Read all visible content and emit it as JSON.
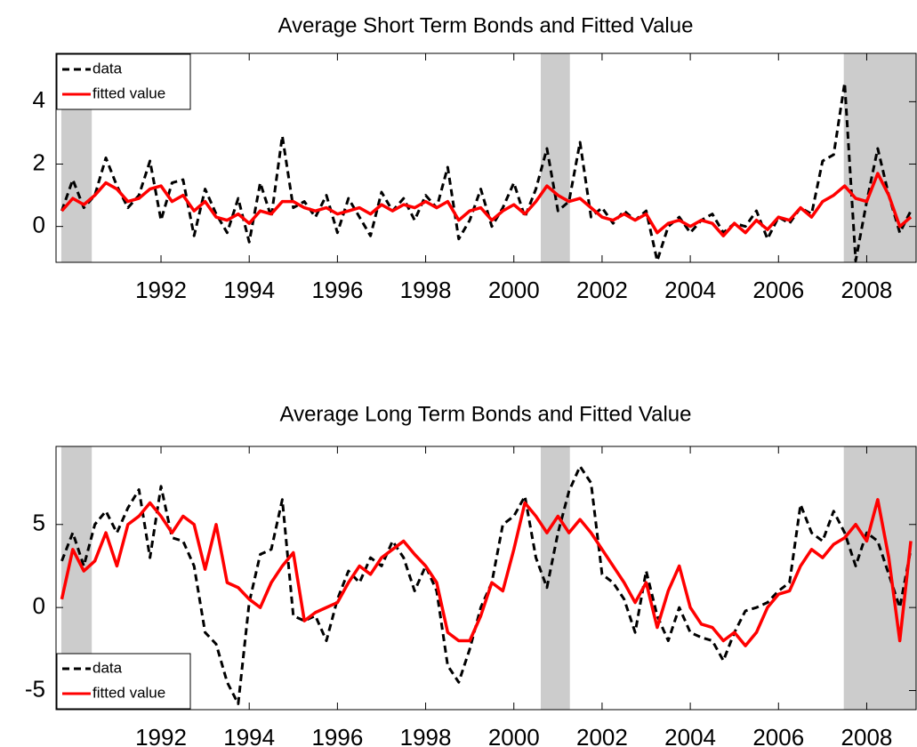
{
  "chart_data": [
    {
      "type": "line",
      "title": "Average Short Term Bonds and Fitted Value",
      "x": [
        1989.75,
        1990,
        1990.25,
        1990.5,
        1990.75,
        1991,
        1991.25,
        1991.5,
        1991.75,
        1992,
        1992.25,
        1992.5,
        1992.75,
        1993,
        1993.25,
        1993.5,
        1993.75,
        1994,
        1994.25,
        1994.5,
        1994.75,
        1995,
        1995.25,
        1995.5,
        1995.75,
        1996,
        1996.25,
        1996.5,
        1996.75,
        1997,
        1997.25,
        1997.5,
        1997.75,
        1998,
        1998.25,
        1998.5,
        1998.75,
        1999,
        1999.25,
        1999.5,
        1999.75,
        2000,
        2000.25,
        2000.5,
        2000.75,
        2001,
        2001.25,
        2001.5,
        2001.75,
        2002,
        2002.25,
        2002.5,
        2002.75,
        2003,
        2003.25,
        2003.5,
        2003.75,
        2004,
        2004.25,
        2004.5,
        2004.75,
        2005,
        2005.25,
        2005.5,
        2005.75,
        2006,
        2006.25,
        2006.5,
        2006.75,
        2007,
        2007.25,
        2007.5,
        2007.75,
        2008,
        2008.25,
        2008.5,
        2008.75,
        2009
      ],
      "series": [
        {
          "name": "data",
          "color": "#000000",
          "linestyle": "dashed",
          "values": [
            0.5,
            1.5,
            0.6,
            1.0,
            2.2,
            1.3,
            0.6,
            1.0,
            2.1,
            0.2,
            1.4,
            1.5,
            -0.3,
            1.2,
            0.4,
            -0.2,
            0.9,
            -0.5,
            1.4,
            0.3,
            2.9,
            0.6,
            0.8,
            0.3,
            1.0,
            -0.2,
            0.9,
            0.3,
            -0.3,
            1.1,
            0.5,
            0.9,
            0.2,
            1.0,
            0.6,
            1.9,
            -0.4,
            0.2,
            1.2,
            0.0,
            0.6,
            1.4,
            0.3,
            1.2,
            2.5,
            0.5,
            0.8,
            2.7,
            0.3,
            0.6,
            0.1,
            0.5,
            0.2,
            0.5,
            -1.1,
            0.0,
            0.3,
            -0.2,
            0.2,
            0.4,
            -0.2,
            0.1,
            0.0,
            0.5,
            -0.4,
            0.3,
            0.1,
            0.6,
            0.4,
            2.1,
            2.3,
            4.6,
            -1.1,
            0.8,
            2.5,
            1.0,
            -0.2,
            0.5
          ]
        },
        {
          "name": "fitted value",
          "color": "#ff0000",
          "linestyle": "solid",
          "values": [
            0.5,
            0.9,
            0.7,
            1.0,
            1.4,
            1.2,
            0.8,
            0.9,
            1.2,
            1.3,
            0.8,
            1.0,
            0.5,
            0.8,
            0.3,
            0.2,
            0.4,
            0.1,
            0.5,
            0.4,
            0.8,
            0.8,
            0.6,
            0.5,
            0.6,
            0.4,
            0.5,
            0.6,
            0.4,
            0.7,
            0.5,
            0.7,
            0.6,
            0.8,
            0.6,
            0.8,
            0.2,
            0.5,
            0.6,
            0.2,
            0.5,
            0.7,
            0.4,
            0.8,
            1.3,
            1.0,
            0.8,
            0.9,
            0.6,
            0.3,
            0.2,
            0.4,
            0.2,
            0.4,
            -0.2,
            0.1,
            0.2,
            0.0,
            0.2,
            0.1,
            -0.3,
            0.1,
            -0.2,
            0.2,
            -0.1,
            0.3,
            0.2,
            0.6,
            0.3,
            0.8,
            1.0,
            1.3,
            0.9,
            0.8,
            1.7,
            1.0,
            0.0,
            0.3
          ]
        }
      ],
      "shaded_regions": [
        [
          1989.74,
          1990.43
        ],
        [
          2000.61,
          2001.27
        ],
        [
          2007.48,
          2009.12
        ]
      ],
      "xlim": [
        1989.62,
        2009.12
      ],
      "xticks": [
        1992,
        1994,
        1996,
        1998,
        2000,
        2002,
        2004,
        2006,
        2008
      ],
      "ylim": [
        -1.15,
        5.55
      ],
      "yticks": [
        0,
        2,
        4
      ],
      "grid": false,
      "legend": "upper-left"
    },
    {
      "type": "line",
      "title": "Average Long Term Bonds and Fitted Value",
      "x": [
        1989.75,
        1990,
        1990.25,
        1990.5,
        1990.75,
        1991,
        1991.25,
        1991.5,
        1991.75,
        1992,
        1992.25,
        1992.5,
        1992.75,
        1993,
        1993.25,
        1993.5,
        1993.75,
        1994,
        1994.25,
        1994.5,
        1994.75,
        1995,
        1995.25,
        1995.5,
        1995.75,
        1996,
        1996.25,
        1996.5,
        1996.75,
        1997,
        1997.25,
        1997.5,
        1997.75,
        1998,
        1998.25,
        1998.5,
        1998.75,
        1999,
        1999.25,
        1999.5,
        1999.75,
        2000,
        2000.25,
        2000.5,
        2000.75,
        2001,
        2001.25,
        2001.5,
        2001.75,
        2002,
        2002.25,
        2002.5,
        2002.75,
        2003,
        2003.25,
        2003.5,
        2003.75,
        2004,
        2004.25,
        2004.5,
        2004.75,
        2005,
        2005.25,
        2005.5,
        2005.75,
        2006,
        2006.25,
        2006.5,
        2006.75,
        2007,
        2007.25,
        2007.5,
        2007.75,
        2008,
        2008.25,
        2008.5,
        2008.75,
        2009
      ],
      "series": [
        {
          "name": "data",
          "color": "#000000",
          "linestyle": "dashed",
          "values": [
            2.8,
            4.5,
            2.5,
            5.0,
            5.8,
            4.5,
            6.0,
            7.1,
            3.0,
            7.3,
            4.2,
            4.0,
            2.5,
            -1.5,
            -2.2,
            -4.5,
            -5.8,
            0.3,
            3.2,
            3.5,
            6.5,
            -0.5,
            -0.8,
            -0.5,
            -2.0,
            0.5,
            2.2,
            1.5,
            3.0,
            2.5,
            4.0,
            3.0,
            1.0,
            2.5,
            1.0,
            -3.5,
            -4.5,
            -2.5,
            0.0,
            1.5,
            5.0,
            5.5,
            6.7,
            3.0,
            1.2,
            4.5,
            7.0,
            8.5,
            7.5,
            2.0,
            1.5,
            0.5,
            -1.5,
            2.2,
            -0.5,
            -2.0,
            0.0,
            -1.5,
            -1.8,
            -2.0,
            -3.2,
            -1.5,
            -0.2,
            0.0,
            0.3,
            1.0,
            1.5,
            6.2,
            4.5,
            4.0,
            5.8,
            4.5,
            2.5,
            4.5,
            4.0,
            2.0,
            0.0,
            3.5
          ]
        },
        {
          "name": "fitted value",
          "color": "#ff0000",
          "linestyle": "solid",
          "values": [
            0.5,
            3.5,
            2.2,
            2.8,
            4.5,
            2.5,
            5.0,
            5.5,
            6.3,
            5.5,
            4.5,
            5.5,
            5.0,
            2.3,
            5.0,
            1.5,
            1.2,
            0.5,
            0.0,
            1.5,
            2.5,
            3.3,
            -0.8,
            -0.3,
            0.0,
            0.3,
            1.5,
            2.5,
            2.0,
            3.0,
            3.5,
            4.0,
            3.2,
            2.5,
            1.5,
            -1.5,
            -2.0,
            -2.0,
            -0.5,
            1.5,
            1.0,
            3.5,
            6.3,
            5.5,
            4.5,
            5.5,
            4.5,
            5.3,
            4.5,
            3.5,
            2.5,
            1.5,
            0.3,
            1.5,
            -1.2,
            1.0,
            2.5,
            0.0,
            -1.0,
            -1.2,
            -2.0,
            -1.5,
            -2.3,
            -1.5,
            0.0,
            0.8,
            1.0,
            2.5,
            3.5,
            3.0,
            3.8,
            4.2,
            5.0,
            4.0,
            6.5,
            3.0,
            -2.0,
            4.0
          ]
        }
      ],
      "shaded_regions": [
        [
          1989.74,
          1990.43
        ],
        [
          2000.61,
          2001.27
        ],
        [
          2007.48,
          2009.12
        ]
      ],
      "xlim": [
        1989.62,
        2009.12
      ],
      "xticks": [
        1992,
        1994,
        1996,
        1998,
        2000,
        2002,
        2004,
        2006,
        2008
      ],
      "ylim": [
        -6.15,
        9.7
      ],
      "yticks": [
        -5,
        0,
        5
      ],
      "grid": false,
      "legend": "lower-left"
    }
  ]
}
